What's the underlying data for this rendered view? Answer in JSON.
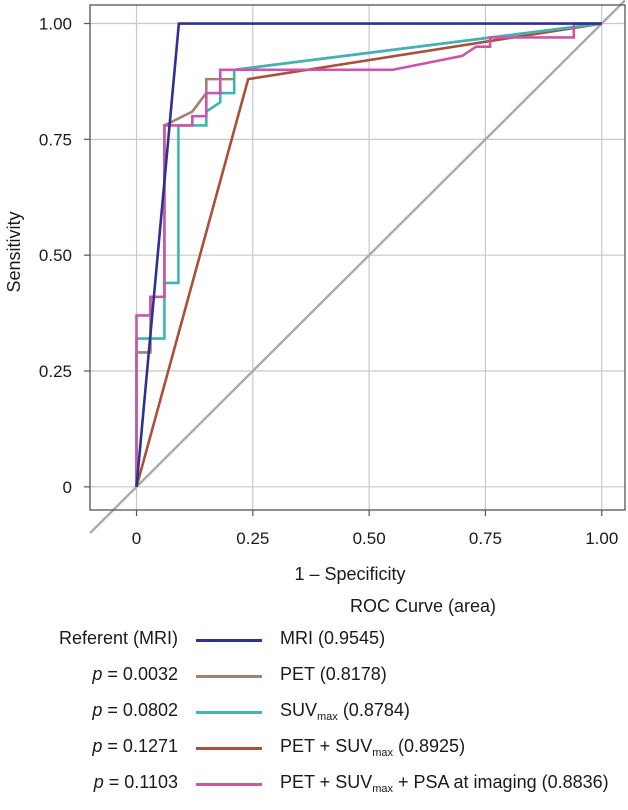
{
  "chart_data": {
    "type": "line",
    "xlabel": "1 – Specificity",
    "ylabel": "Sensitivity",
    "xlim": [
      -0.1,
      1.05
    ],
    "ylim": [
      -0.05,
      1.04
    ],
    "x_ticks": [
      0,
      0.25,
      0.5,
      0.75,
      1.0
    ],
    "x_tick_labels": [
      "0",
      "0.25",
      "0.50",
      "0.75",
      "1.00"
    ],
    "y_ticks": [
      0,
      0.25,
      0.5,
      0.75,
      1.0
    ],
    "y_tick_labels": [
      "0",
      "0.25",
      "0.50",
      "0.75",
      "1.00"
    ],
    "grid": true,
    "reference_line": {
      "name": "chance",
      "x": [
        0,
        1
      ],
      "y": [
        0,
        1
      ],
      "color": "#aaaaaa"
    },
    "legend_title": "ROC Curve (area)",
    "series": [
      {
        "key": "mri",
        "name": "MRI",
        "area": "(0.9545)",
        "p_text": "Referent (MRI)",
        "color": "#2e3192",
        "x": [
          0,
          0.091,
          1
        ],
        "y": [
          0,
          1,
          1
        ]
      },
      {
        "key": "pet",
        "name": "PET",
        "area": "(0.8178)",
        "p_prefix": "p",
        "p_value": "= 0.0032",
        "color": "#a08271",
        "x": [
          0,
          0,
          0.03,
          0.03,
          0.06,
          0.06,
          0.12,
          0.15,
          0.15,
          0.21,
          0.21,
          1
        ],
        "y": [
          0,
          0.29,
          0.29,
          0.41,
          0.41,
          0.78,
          0.81,
          0.85,
          0.88,
          0.88,
          0.9,
          1
        ]
      },
      {
        "key": "suv",
        "name": "SUV",
        "name_sub": "max",
        "area": "(0.8784)",
        "p_prefix": "p",
        "p_value": "= 0.0802",
        "color": "#3fb3b5",
        "x": [
          0,
          0,
          0.06,
          0.06,
          0.09,
          0.09,
          0.12,
          0.15,
          0.15,
          0.18,
          0.18,
          0.21,
          0.21,
          1
        ],
        "y": [
          0,
          0.32,
          0.32,
          0.44,
          0.44,
          0.78,
          0.78,
          0.78,
          0.81,
          0.83,
          0.85,
          0.85,
          0.9,
          1
        ]
      },
      {
        "key": "pet_suv",
        "name": "PET + SUV",
        "name_sub": "max",
        "area": "(0.8925)",
        "p_prefix": "p",
        "p_value": "= 0.1271",
        "color": "#a8503a",
        "x": [
          0,
          0.24,
          1
        ],
        "y": [
          0,
          0.88,
          1
        ]
      },
      {
        "key": "pet_suv_psa",
        "name": "PET + SUV",
        "name_sub": "max",
        "name_suffix": " + PSA at imaging",
        "area": "(0.8836)",
        "p_prefix": "p",
        "p_value": "= 0.1103",
        "color": "#cc55aa",
        "x": [
          0,
          0,
          0.03,
          0.03,
          0.06,
          0.06,
          0.12,
          0.12,
          0.15,
          0.15,
          0.18,
          0.18,
          0.55,
          0.7,
          0.73,
          0.76,
          0.76,
          0.94,
          0.94,
          1
        ],
        "y": [
          0,
          0.37,
          0.37,
          0.41,
          0.41,
          0.78,
          0.78,
          0.8,
          0.8,
          0.85,
          0.85,
          0.9,
          0.9,
          0.93,
          0.95,
          0.95,
          0.97,
          0.97,
          1,
          1
        ]
      }
    ]
  }
}
